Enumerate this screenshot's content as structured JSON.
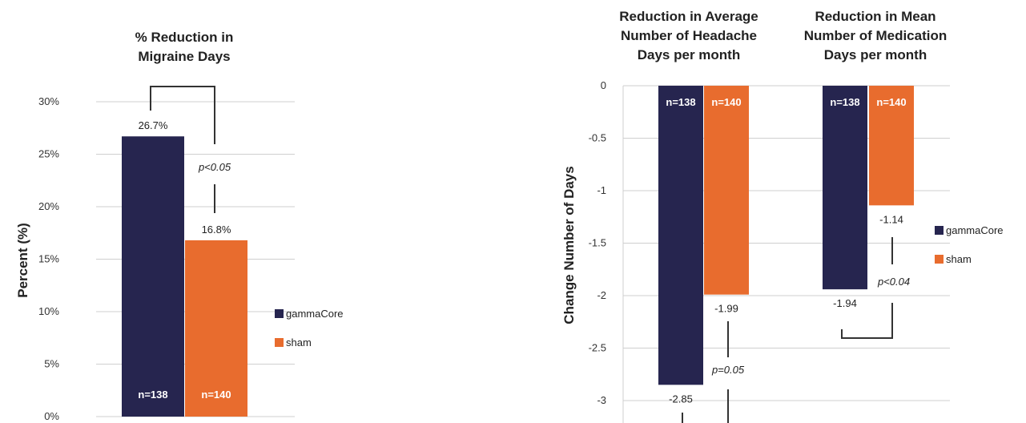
{
  "chart_data": [
    {
      "type": "bar",
      "title": "% Reduction in Migraine Days",
      "ylabel": "Percent (%)",
      "ylim": [
        0,
        30
      ],
      "yticks": [
        "0%",
        "5%",
        "10%",
        "15%",
        "20%",
        "25%",
        "30%"
      ],
      "grid": true,
      "series": [
        {
          "name": "gammaCore",
          "values": [
            26.7
          ],
          "value_labels": [
            "26.7%"
          ],
          "n_labels": [
            "n=138"
          ]
        },
        {
          "name": "sham",
          "values": [
            16.8
          ],
          "value_labels": [
            "16.8%"
          ],
          "n_labels": [
            "n=140"
          ]
        }
      ],
      "annotation": "p<0.05",
      "legend": [
        "gammaCore",
        "sham"
      ],
      "legend_position": "right"
    },
    {
      "type": "bar",
      "ylabel": "Change Number of Days",
      "ylim": [
        -3,
        0
      ],
      "yticks": [
        "0",
        "-0.5",
        "-1",
        "-1.5",
        "-2",
        "-2.5",
        "-3"
      ],
      "grid": true,
      "groups": [
        {
          "title": "Reduction in Average Number of Headache Days per month",
          "title_lines": [
            "Reduction in Average",
            "Number of Headache",
            "Days per month"
          ],
          "values": {
            "gammaCore": -2.85,
            "sham": -1.99
          },
          "value_labels": {
            "gammaCore": "-2.85",
            "sham": "-1.99"
          },
          "n_labels": {
            "gammaCore": "n=138",
            "sham": "n=140"
          },
          "annotation": "p=0.05"
        },
        {
          "title": "Reduction in Mean Number of Medication Days per month",
          "title_lines": [
            "Reduction in Mean",
            "Number of Medication",
            "Days per month"
          ],
          "values": {
            "gammaCore": -1.94,
            "sham": -1.14
          },
          "value_labels": {
            "gammaCore": "-1.94",
            "sham": "-1.14"
          },
          "n_labels": {
            "gammaCore": "n=138",
            "sham": "n=140"
          },
          "annotation": "p<0.04"
        }
      ],
      "legend": [
        "gammaCore",
        "sham"
      ],
      "legend_position": "right"
    }
  ],
  "colors": {
    "gammaCore": "#26254f",
    "sham": "#e86c2e"
  },
  "left_title_lines": [
    "% Reduction in",
    "Migraine Days"
  ]
}
